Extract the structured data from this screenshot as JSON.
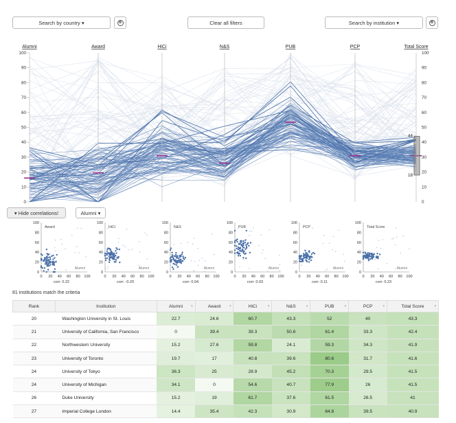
{
  "controls": {
    "country_label": "Search by country ▾",
    "clear_label": "Clear all filters",
    "institution_label": "Search by institution ▾",
    "clear_icon": "⊗",
    "hide_corr_label": "▾ Hide correlations!",
    "alumni_select_label": "Alumni ▾"
  },
  "parallel_coordinates": {
    "axes": [
      "Alumni",
      "Award",
      "HiCi",
      "N&S",
      "PUB",
      "PCP",
      "Total Score"
    ],
    "yticks": [
      "100",
      "90",
      "80",
      "70",
      "60",
      "50",
      "40",
      "30",
      "20",
      "10",
      "0"
    ],
    "means": [
      16,
      19.5,
      31,
      26,
      53.5,
      31,
      31
    ],
    "brush_range": {
      "max_label": "44",
      "min_label": "18"
    },
    "line_color": "#5a7fb5"
  },
  "correlations": {
    "x_axis_label": "Alumni",
    "xticks": [
      "0",
      "20",
      "40",
      "60",
      "80",
      "100"
    ],
    "yticks": [
      "100",
      "80",
      "60",
      "40",
      "20",
      "0"
    ],
    "panels": [
      {
        "metric": "Award",
        "corr": "corr: 0.22"
      },
      {
        "metric": "HiCi",
        "corr": "corr: -0.20"
      },
      {
        "metric": "N&S",
        "corr": "corr: 0.04"
      },
      {
        "metric": "PUB",
        "corr": "corr: 0.03"
      },
      {
        "metric": "PCP",
        "corr": "corr: 0.11"
      },
      {
        "metric": "Total Score",
        "corr": "corr: 0.23"
      }
    ]
  },
  "results": {
    "match_text": "81 institutions match the criteria",
    "columns": [
      "Rank",
      "Institution",
      "Alumni",
      "Award",
      "HiCi",
      "N&S",
      "PUB",
      "PCP",
      "Total Score"
    ],
    "rows": [
      [
        "20",
        "Washington University in St. Louis",
        "22.7",
        "24.6",
        "60.7",
        "43.3",
        "52",
        "40",
        "43.3"
      ],
      [
        "21",
        "University of California, San Francisco",
        "0",
        "39.4",
        "39.3",
        "50.8",
        "61.4",
        "33.3",
        "42.4"
      ],
      [
        "22",
        "Northwestern University",
        "15.2",
        "27.6",
        "59.8",
        "24.1",
        "59.3",
        "34.3",
        "41.9"
      ],
      [
        "23",
        "University of Toronto",
        "19.7",
        "17",
        "40.8",
        "39.6",
        "80.6",
        "31.7",
        "41.6"
      ],
      [
        "24",
        "University of Tokyo",
        "36.3",
        "25",
        "28.9",
        "45.2",
        "70.3",
        "29.5",
        "41.5"
      ],
      [
        "24",
        "University of Michigan",
        "34.1",
        "0",
        "54.6",
        "40.7",
        "77.9",
        "26",
        "41.5"
      ],
      [
        "26",
        "Duke University",
        "15.2",
        "19",
        "61.7",
        "37.6",
        "61.5",
        "26.5",
        "41"
      ],
      [
        "27",
        "Imperial College London",
        "14.4",
        "35.4",
        "42.3",
        "30.9",
        "64.8",
        "39.5",
        "40.9"
      ]
    ]
  },
  "chart_data": {
    "type": "parallel-coordinates",
    "dimensions": [
      "Alumni",
      "Award",
      "HiCi",
      "N&S",
      "PUB",
      "PCP",
      "Total Score"
    ],
    "ylim": [
      0,
      100
    ],
    "series": [
      {
        "name": "Washington University in St. Louis",
        "values": [
          22.7,
          24.6,
          60.7,
          43.3,
          52,
          40,
          43.3
        ]
      },
      {
        "name": "University of California, San Francisco",
        "values": [
          0,
          39.4,
          39.3,
          50.8,
          61.4,
          33.3,
          42.4
        ]
      },
      {
        "name": "Northwestern University",
        "values": [
          15.2,
          27.6,
          59.8,
          24.1,
          59.3,
          34.3,
          41.9
        ]
      },
      {
        "name": "University of Toronto",
        "values": [
          19.7,
          17,
          40.8,
          39.6,
          80.6,
          31.7,
          41.6
        ]
      },
      {
        "name": "University of Tokyo",
        "values": [
          36.3,
          25,
          28.9,
          45.2,
          70.3,
          29.5,
          41.5
        ]
      },
      {
        "name": "University of Michigan",
        "values": [
          34.1,
          0,
          54.6,
          40.7,
          77.9,
          26,
          41.5
        ]
      },
      {
        "name": "Duke University",
        "values": [
          15.2,
          19,
          61.7,
          37.6,
          61.5,
          26.5,
          41
        ]
      },
      {
        "name": "Imperial College London",
        "values": [
          14.4,
          35.4,
          42.3,
          30.9,
          64.8,
          39.5,
          40.9
        ]
      }
    ]
  }
}
